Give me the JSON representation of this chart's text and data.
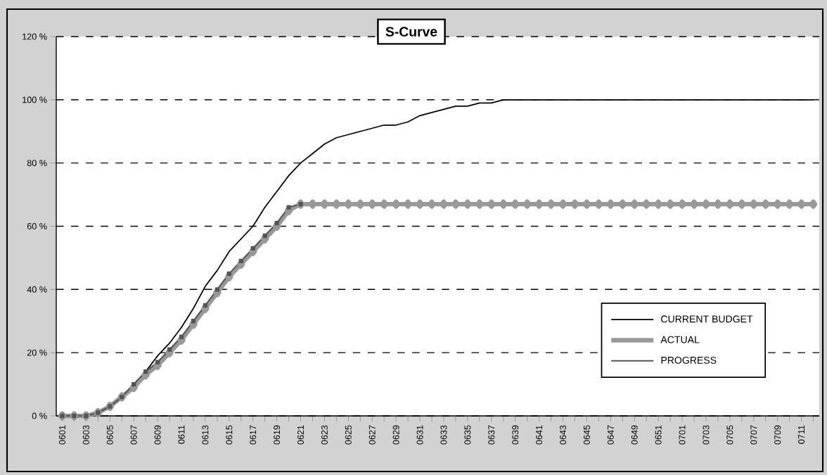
{
  "chart_data": {
    "type": "line",
    "title": "S-Curve",
    "categories": [
      "0601",
      null,
      "0603",
      null,
      "0605",
      null,
      "0607",
      null,
      "0609",
      null,
      "0611",
      null,
      "0613",
      null,
      "0615",
      null,
      "0617",
      null,
      "0619",
      null,
      "0621",
      null,
      "0623",
      null,
      "0625",
      null,
      "0627",
      null,
      "0629",
      null,
      "0631",
      null,
      "0633",
      null,
      "0635",
      null,
      "0637",
      null,
      "0639",
      null,
      "0641",
      null,
      "0643",
      null,
      "0645",
      null,
      "0647",
      null,
      "0649",
      null,
      "0651",
      null,
      "0701",
      null,
      "0703",
      null,
      "0705",
      null,
      "0707",
      null,
      "0709",
      null,
      "0711",
      null
    ],
    "series": [
      {
        "name": "CURRENT BUDGET",
        "color": "#000000",
        "marker": "none",
        "values": [
          0,
          0,
          0,
          1,
          3,
          6,
          10,
          14,
          19,
          23,
          28,
          34,
          41,
          46,
          52,
          56,
          60,
          66,
          71,
          76,
          80,
          83,
          86,
          88,
          89,
          90,
          91,
          92,
          92,
          93,
          95,
          96,
          97,
          98,
          98,
          99,
          99,
          100,
          100,
          100,
          100,
          100,
          100,
          100,
          100,
          100,
          100,
          100,
          100,
          100,
          100,
          100,
          100,
          100,
          100,
          100,
          100,
          100,
          100,
          100,
          100,
          100,
          100,
          100
        ]
      },
      {
        "name": "ACTUAL",
        "color": "#999999",
        "marker": "diamond",
        "values": [
          0,
          0,
          0,
          1,
          3,
          6,
          9,
          13,
          16,
          20,
          24,
          29,
          34,
          39,
          44,
          48,
          52,
          56,
          60,
          65,
          67,
          67,
          67,
          67,
          67,
          67,
          67,
          67,
          67,
          67,
          67,
          67,
          67,
          67,
          67,
          67,
          67,
          67,
          67,
          67,
          67,
          67,
          67,
          67,
          67,
          67,
          67,
          67,
          67,
          67,
          67,
          67,
          67,
          67,
          67,
          67,
          67,
          67,
          67,
          67,
          67,
          67,
          67,
          67
        ]
      },
      {
        "name": "PROGRESS",
        "color": "#555555",
        "marker": "square",
        "values": [
          0,
          0,
          0,
          1,
          3,
          6,
          10,
          14,
          17,
          21,
          25,
          30,
          35,
          40,
          45,
          49,
          53,
          57,
          61,
          66,
          67,
          null,
          null,
          null,
          null,
          null,
          null,
          null,
          null,
          null,
          null,
          null,
          null,
          null,
          null,
          null,
          null,
          null,
          null,
          null,
          null,
          null,
          null,
          null,
          null,
          null,
          null,
          null,
          null,
          null,
          null,
          null,
          null,
          null,
          null,
          null,
          null,
          null,
          null,
          null,
          null,
          null,
          null,
          null
        ]
      }
    ],
    "ylim": [
      0,
      120
    ],
    "yticks": [
      {
        "value": 0,
        "label": "0 %"
      },
      {
        "value": 20,
        "label": "20 %"
      },
      {
        "value": 40,
        "label": "40 %"
      },
      {
        "value": 60,
        "label": "60 %"
      },
      {
        "value": 80,
        "label": "80 %"
      },
      {
        "value": 100,
        "label": "100 %"
      },
      {
        "value": 120,
        "label": "120 %"
      }
    ],
    "grid": "y",
    "legend": "bottom right"
  }
}
